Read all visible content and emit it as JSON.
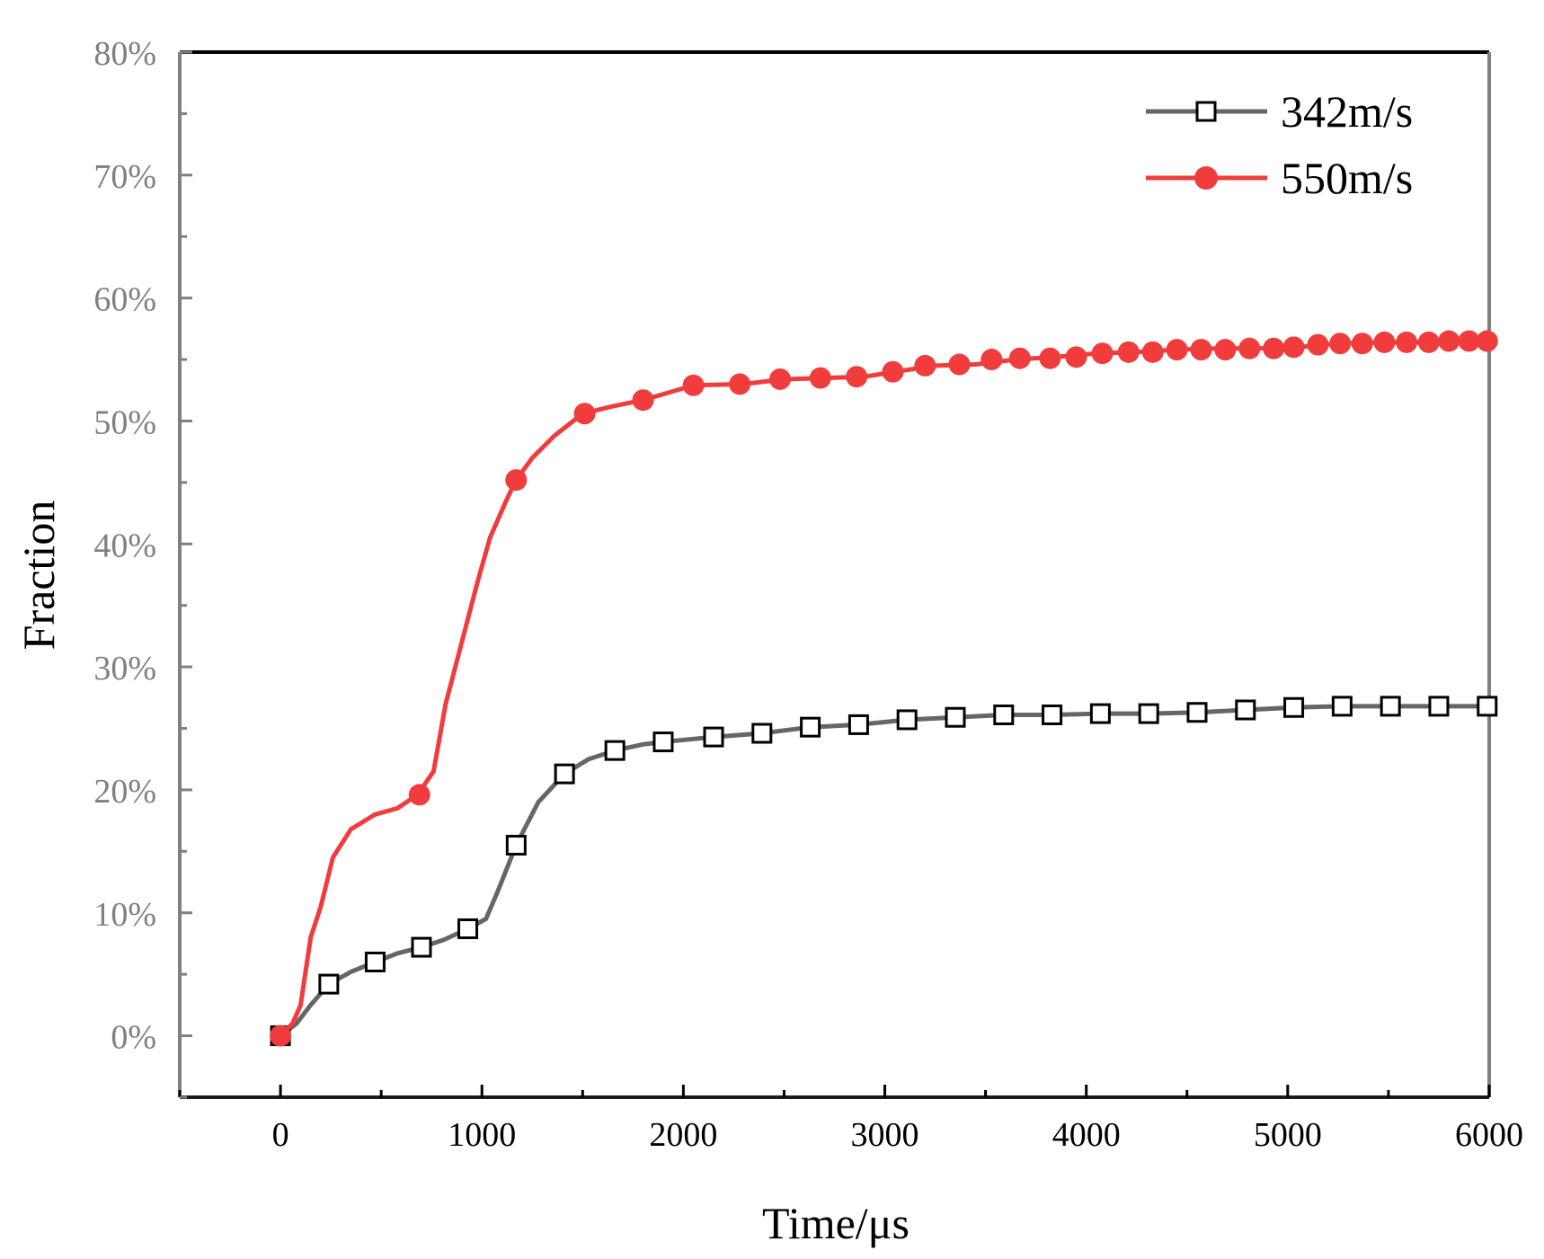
{
  "chart_data": {
    "type": "line",
    "title": "",
    "xlabel": "Time/μs",
    "ylabel": "Fraction",
    "xlim": [
      -500,
      6000
    ],
    "ylim": [
      -0.05,
      0.8
    ],
    "x_ticks": [
      0,
      1000,
      2000,
      3000,
      4000,
      5000,
      6000
    ],
    "x_tick_labels": [
      "0",
      "1000",
      "2000",
      "3000",
      "4000",
      "5000",
      "6000"
    ],
    "y_ticks": [
      0,
      0.1,
      0.2,
      0.3,
      0.4,
      0.5,
      0.6,
      0.7,
      0.8
    ],
    "y_tick_labels": [
      "0%",
      "10%",
      "20%",
      "30%",
      "40%",
      "50%",
      "60%",
      "70%",
      "80%"
    ],
    "grid": false,
    "legend_position": "top-right",
    "colors": {
      "tick_text": "#808080",
      "axis": "#808080",
      "axis_dark": "#1a1a1a"
    },
    "series": [
      {
        "name": "342m/s",
        "color": "#666666",
        "marker": "open-square",
        "line": [
          [
            0,
            0
          ],
          [
            80,
            0.01
          ],
          [
            150,
            0.025
          ],
          [
            240,
            0.042
          ],
          [
            350,
            0.052
          ],
          [
            470,
            0.06
          ],
          [
            580,
            0.067
          ],
          [
            700,
            0.072
          ],
          [
            810,
            0.078
          ],
          [
            930,
            0.087
          ],
          [
            1020,
            0.095
          ],
          [
            1080,
            0.118
          ],
          [
            1170,
            0.155
          ],
          [
            1280,
            0.19
          ],
          [
            1410,
            0.213
          ],
          [
            1530,
            0.225
          ],
          [
            1660,
            0.232
          ],
          [
            1800,
            0.237
          ],
          [
            1900,
            0.239
          ],
          [
            2150,
            0.243
          ],
          [
            2390,
            0.246
          ],
          [
            2630,
            0.251
          ],
          [
            2870,
            0.253
          ],
          [
            3110,
            0.257
          ],
          [
            3350,
            0.259
          ],
          [
            3590,
            0.261
          ],
          [
            3830,
            0.261
          ],
          [
            4070,
            0.262
          ],
          [
            4310,
            0.262
          ],
          [
            4550,
            0.263
          ],
          [
            4790,
            0.265
          ],
          [
            5030,
            0.267
          ],
          [
            5270,
            0.268
          ],
          [
            5510,
            0.268
          ],
          [
            5750,
            0.268
          ],
          [
            5990,
            0.268
          ]
        ],
        "markers": [
          [
            0,
            0
          ],
          [
            240,
            0.042
          ],
          [
            470,
            0.06
          ],
          [
            700,
            0.072
          ],
          [
            930,
            0.087
          ],
          [
            1170,
            0.155
          ],
          [
            1410,
            0.213
          ],
          [
            1660,
            0.232
          ],
          [
            1900,
            0.239
          ],
          [
            2150,
            0.243
          ],
          [
            2390,
            0.246
          ],
          [
            2630,
            0.251
          ],
          [
            2870,
            0.253
          ],
          [
            3110,
            0.257
          ],
          [
            3350,
            0.259
          ],
          [
            3590,
            0.261
          ],
          [
            3830,
            0.261
          ],
          [
            4070,
            0.262
          ],
          [
            4310,
            0.262
          ],
          [
            4550,
            0.263
          ],
          [
            4790,
            0.265
          ],
          [
            5030,
            0.267
          ],
          [
            5270,
            0.268
          ],
          [
            5510,
            0.268
          ],
          [
            5750,
            0.268
          ],
          [
            5990,
            0.268
          ]
        ]
      },
      {
        "name": "550m/s",
        "color": "#f03c3c",
        "marker": "filled-circle",
        "line": [
          [
            0,
            0
          ],
          [
            60,
            0.01
          ],
          [
            100,
            0.025
          ],
          [
            150,
            0.08
          ],
          [
            200,
            0.105
          ],
          [
            260,
            0.145
          ],
          [
            350,
            0.168
          ],
          [
            470,
            0.18
          ],
          [
            580,
            0.185
          ],
          [
            680,
            0.196
          ],
          [
            760,
            0.215
          ],
          [
            820,
            0.27
          ],
          [
            900,
            0.32
          ],
          [
            980,
            0.37
          ],
          [
            1040,
            0.405
          ],
          [
            1120,
            0.435
          ],
          [
            1170,
            0.452
          ],
          [
            1250,
            0.47
          ],
          [
            1360,
            0.488
          ],
          [
            1500,
            0.506
          ],
          [
            1650,
            0.512
          ],
          [
            1800,
            0.517
          ],
          [
            2050,
            0.529
          ],
          [
            2300,
            0.53
          ],
          [
            2500,
            0.534
          ],
          [
            2700,
            0.535
          ],
          [
            2900,
            0.536
          ],
          [
            3050,
            0.54
          ],
          [
            3250,
            0.545
          ],
          [
            3450,
            0.546
          ],
          [
            3650,
            0.55
          ],
          [
            3850,
            0.552
          ],
          [
            4050,
            0.555
          ],
          [
            4250,
            0.556
          ],
          [
            4450,
            0.558
          ],
          [
            4650,
            0.559
          ],
          [
            4850,
            0.559
          ],
          [
            5050,
            0.56
          ],
          [
            5250,
            0.563
          ],
          [
            5450,
            0.564
          ],
          [
            5650,
            0.564
          ],
          [
            5850,
            0.565
          ],
          [
            5990,
            0.565
          ]
        ],
        "markers": [
          [
            0,
            0
          ],
          [
            690,
            0.196
          ],
          [
            1170,
            0.452
          ],
          [
            1510,
            0.506
          ],
          [
            1800,
            0.517
          ],
          [
            2050,
            0.529
          ],
          [
            2280,
            0.53
          ],
          [
            2480,
            0.534
          ],
          [
            2680,
            0.535
          ],
          [
            2860,
            0.536
          ],
          [
            3040,
            0.54
          ],
          [
            3200,
            0.545
          ],
          [
            3370,
            0.546
          ],
          [
            3530,
            0.55
          ],
          [
            3670,
            0.551
          ],
          [
            3820,
            0.551
          ],
          [
            3950,
            0.552
          ],
          [
            4080,
            0.555
          ],
          [
            4210,
            0.556
          ],
          [
            4330,
            0.556
          ],
          [
            4450,
            0.558
          ],
          [
            4570,
            0.558
          ],
          [
            4690,
            0.558
          ],
          [
            4810,
            0.559
          ],
          [
            4930,
            0.559
          ],
          [
            5030,
            0.56
          ],
          [
            5150,
            0.562
          ],
          [
            5260,
            0.563
          ],
          [
            5370,
            0.563
          ],
          [
            5480,
            0.564
          ],
          [
            5590,
            0.564
          ],
          [
            5700,
            0.564
          ],
          [
            5800,
            0.565
          ],
          [
            5900,
            0.565
          ],
          [
            5990,
            0.565
          ]
        ]
      }
    ]
  }
}
